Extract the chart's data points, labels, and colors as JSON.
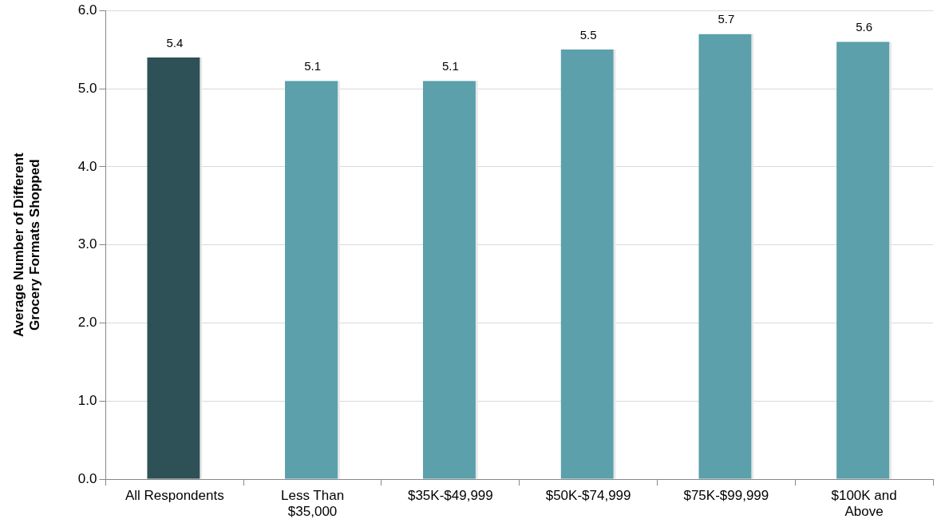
{
  "chart_data": {
    "type": "bar",
    "ylabel": "Average Number of Different\nGrocery Formats Shopped",
    "categories": [
      "All Respondents",
      "Less Than\n$35,000",
      "$35K-$49,999",
      "$50K-$74,999",
      "$75K-$99,999",
      "$100K and\nAbove"
    ],
    "values": [
      5.4,
      5.1,
      5.1,
      5.5,
      5.7,
      5.6
    ],
    "colors": [
      "#2d5157",
      "#5ba0ab",
      "#5ba0ab",
      "#5ba0ab",
      "#5ba0ab",
      "#5ba0ab"
    ],
    "ylim": [
      0,
      6
    ],
    "yticks": [
      {
        "value": 0,
        "label": "0.0"
      },
      {
        "value": 1,
        "label": "1.0"
      },
      {
        "value": 2,
        "label": "2.0"
      },
      {
        "value": 3,
        "label": "3.0"
      },
      {
        "value": 4,
        "label": "4.0"
      },
      {
        "value": 5,
        "label": "5.0"
      },
      {
        "value": 6,
        "label": "6.0"
      }
    ],
    "grid": "y",
    "data_labels": true,
    "legend": false
  }
}
